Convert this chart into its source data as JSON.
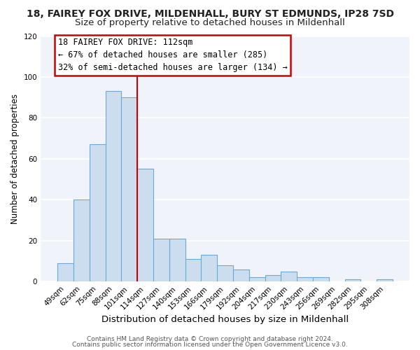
{
  "title1": "18, FAIREY FOX DRIVE, MILDENHALL, BURY ST EDMUNDS, IP28 7SD",
  "title2": "Size of property relative to detached houses in Mildenhall",
  "xlabel": "Distribution of detached houses by size in Mildenhall",
  "ylabel": "Number of detached properties",
  "bar_labels": [
    "49sqm",
    "62sqm",
    "75sqm",
    "88sqm",
    "101sqm",
    "114sqm",
    "127sqm",
    "140sqm",
    "153sqm",
    "166sqm",
    "179sqm",
    "192sqm",
    "204sqm",
    "217sqm",
    "230sqm",
    "243sqm",
    "256sqm",
    "269sqm",
    "282sqm",
    "295sqm",
    "308sqm"
  ],
  "bar_heights": [
    9,
    40,
    67,
    93,
    90,
    55,
    21,
    21,
    11,
    13,
    8,
    6,
    2,
    3,
    5,
    2,
    2,
    0,
    1,
    0,
    1
  ],
  "bar_color": "#ccddf0",
  "bar_edge_color": "#6aaad4",
  "vline_x": 4.5,
  "vline_color": "#cc0000",
  "annotation_title": "18 FAIREY FOX DRIVE: 112sqm",
  "annotation_line1": "← 67% of detached houses are smaller (285)",
  "annotation_line2": "32% of semi-detached houses are larger (134) →",
  "annotation_box_color": "#cc0000",
  "ylim": [
    0,
    120
  ],
  "yticks": [
    0,
    20,
    40,
    60,
    80,
    100,
    120
  ],
  "footer1": "Contains HM Land Registry data © Crown copyright and database right 2024.",
  "footer2": "Contains public sector information licensed under the Open Government Licence v3.0.",
  "bg_color": "#ffffff",
  "plot_bg_color": "#f0f4fa",
  "grid_color": "#ffffff",
  "title1_fontsize": 10,
  "title2_fontsize": 9.5,
  "xlabel_fontsize": 9.5,
  "ylabel_fontsize": 8.5,
  "tick_fontsize": 7.5,
  "footer_fontsize": 6.5,
  "annotation_fontsize": 8.5
}
